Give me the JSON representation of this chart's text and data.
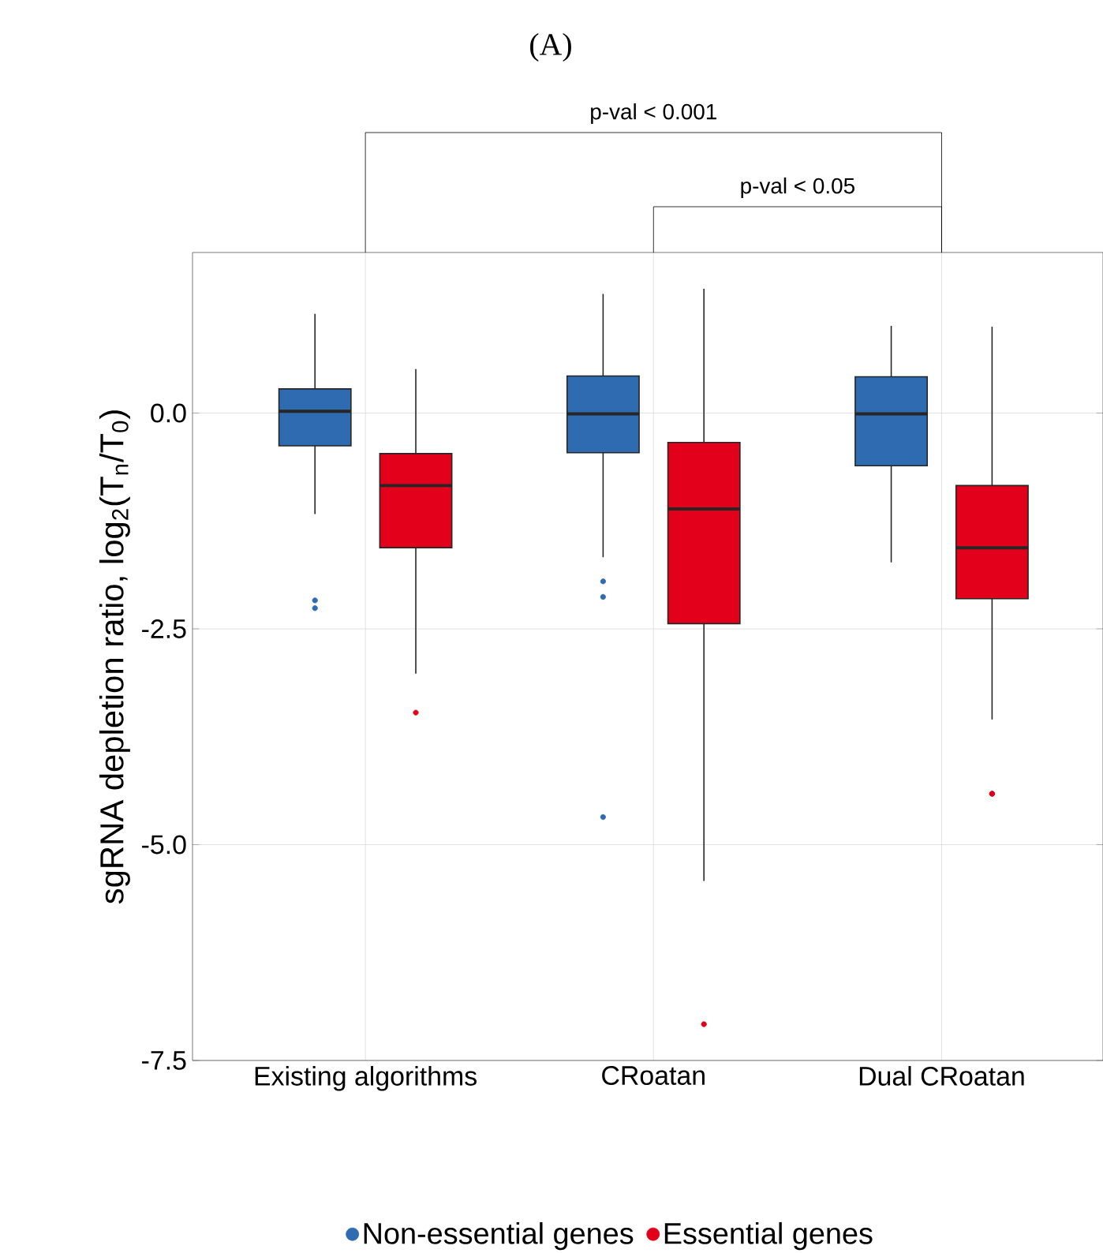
{
  "chart_data": {
    "type": "box",
    "title": "(A)",
    "ylabel": "sgRNA depletion ratio,  log$_{2}$(T$_{n}$/T$_{0}$)",
    "categories": [
      "Existing algorithms",
      "CRoatan",
      "Dual CRoatan"
    ],
    "series": [
      {
        "name": "Non-essential genes",
        "color": "#2e6bb0",
        "boxes": [
          {
            "low": -1.17,
            "q1": -0.38,
            "median": 0.02,
            "q3": 0.28,
            "high": 1.15,
            "outliers": [
              -2.17,
              -2.26
            ]
          },
          {
            "low": -1.67,
            "q1": -0.46,
            "median": -0.01,
            "q3": 0.43,
            "high": 1.38,
            "outliers": [
              -1.95,
              -2.13,
              -4.68
            ]
          },
          {
            "low": -1.73,
            "q1": -0.61,
            "median": -0.01,
            "q3": 0.42,
            "high": 1.01
          }
        ]
      },
      {
        "name": "Essential genes",
        "color": "#e3001b",
        "boxes": [
          {
            "low": -3.02,
            "q1": -1.56,
            "median": -0.84,
            "q3": -0.47,
            "high": 0.51,
            "outliers": [
              -3.47
            ]
          },
          {
            "low": -5.42,
            "q1": -2.44,
            "median": -1.11,
            "q3": -0.34,
            "high": 1.44,
            "outliers": [
              -7.08
            ]
          },
          {
            "low": -3.55,
            "q1": -2.15,
            "median": -1.56,
            "q3": -0.84,
            "high": 1.0,
            "outliers": [
              -4.41,
              -4.41
            ]
          }
        ]
      }
    ],
    "ylim": [
      -7.5,
      1.86
    ],
    "yticks": [
      {
        "value": 0,
        "label": "0.0"
      },
      -2.5,
      {
        "value": -5,
        "label": "-5.0"
      },
      {
        "value": -7.5,
        "label": "-7.5"
      }
    ],
    "grid": true,
    "legend": "bottom",
    "annotations": [
      "p-val < 0.001",
      "p-val < 0.05"
    ]
  }
}
